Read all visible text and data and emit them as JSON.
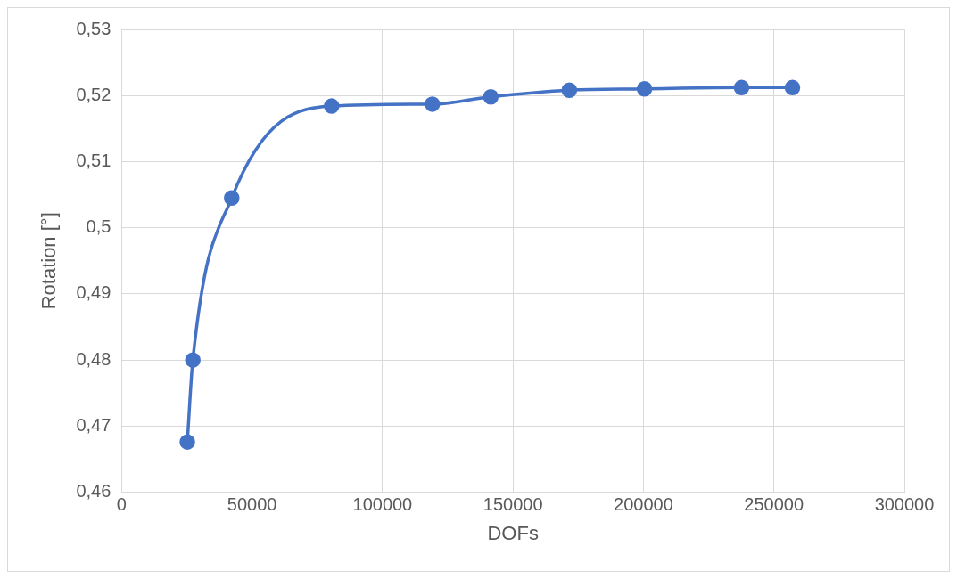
{
  "chart_data": {
    "type": "line",
    "xlabel": "DOFs",
    "ylabel": "Rotation [°]",
    "series": [
      {
        "color": "#4472c4",
        "x": [
          25200,
          27300,
          42200,
          80500,
          119100,
          141500,
          171600,
          200400,
          237600,
          257100
        ],
        "values": [
          0.4676,
          0.48,
          0.5045,
          0.5184,
          0.5187,
          0.5198,
          0.5208,
          0.521,
          0.5212,
          0.5212
        ]
      }
    ],
    "xlim": [
      0,
      300000
    ],
    "xticks": [
      0,
      50000,
      100000,
      150000,
      200000,
      250000,
      300000
    ],
    "ylim": [
      0.46,
      0.53
    ],
    "yticks": [
      {
        "value": 0.46,
        "label": "0,46"
      },
      {
        "value": 0.47,
        "label": "0,47"
      },
      {
        "value": 0.48,
        "label": "0,48"
      },
      {
        "value": 0.49,
        "label": "0,49"
      },
      {
        "value": 0.5,
        "label": "0,5"
      },
      {
        "value": 0.51,
        "label": "0,51"
      },
      {
        "value": 0.52,
        "label": "0,52"
      },
      {
        "value": 0.53,
        "label": "0,53"
      }
    ],
    "grid": true,
    "marker": "circle",
    "line_style": "solid",
    "legend": false
  }
}
